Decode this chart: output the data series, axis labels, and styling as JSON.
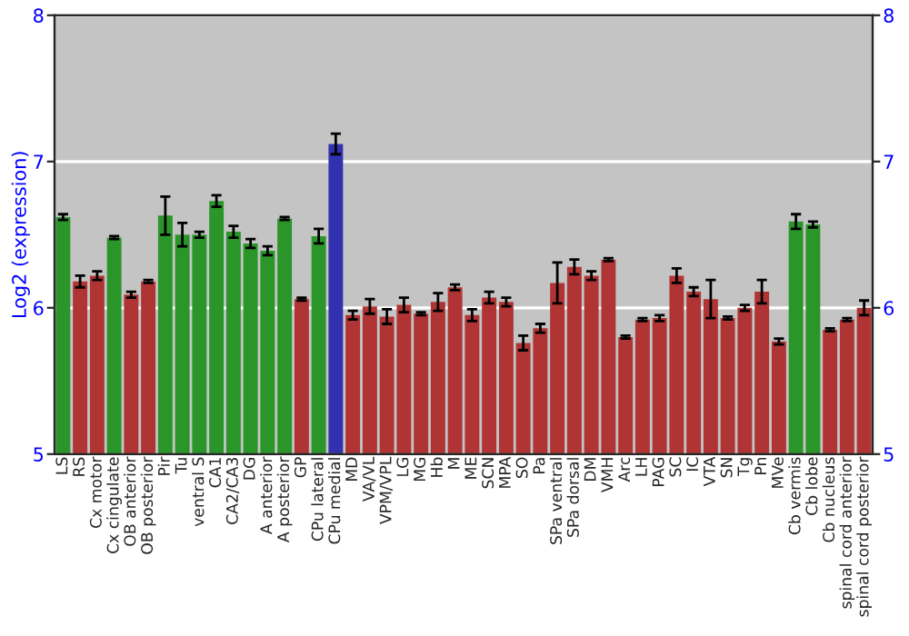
{
  "chart_data": {
    "type": "bar",
    "ylabel": "Log2 (expression)",
    "categories": [
      "LS",
      "RS",
      "Cx motor",
      "Cx cingulate",
      "OB anterior",
      "OB posterior",
      "Pir",
      "Tu",
      "ventral S",
      "CA1",
      "CA2/CA3",
      "DG",
      "A anterior",
      "A posterior",
      "GP",
      "CPu lateral",
      "CPu medial",
      "MD",
      "VA/VL",
      "VPM/VPL",
      "LG",
      "MG",
      "Hb",
      "M",
      "ME",
      "SCN",
      "MPA",
      "SO",
      "Pa",
      "SPa ventral",
      "SPa dorsal",
      "DM",
      "VMH",
      "Arc",
      "LH",
      "PAG",
      "SC",
      "IC",
      "VTA",
      "SN",
      "Tg",
      "Pn",
      "MVe",
      "Cb vermis",
      "Cb lobe",
      "Cb nucleus",
      "spinal cord anterior",
      "spinal cord posterior"
    ],
    "values": [
      6.62,
      6.18,
      6.22,
      6.48,
      6.09,
      6.18,
      6.63,
      6.5,
      6.5,
      6.73,
      6.52,
      6.44,
      6.39,
      6.61,
      6.06,
      6.49,
      7.12,
      5.95,
      6.01,
      5.94,
      6.02,
      5.96,
      6.04,
      6.14,
      5.95,
      6.07,
      6.04,
      5.76,
      5.86,
      6.17,
      6.28,
      6.22,
      6.33,
      5.8,
      5.92,
      5.93,
      6.22,
      6.11,
      6.06,
      5.93,
      6.0,
      6.11,
      5.77,
      6.59,
      6.57,
      5.85,
      5.92,
      6.0
    ],
    "errors": [
      0.02,
      0.04,
      0.03,
      0.01,
      0.02,
      0.01,
      0.13,
      0.08,
      0.02,
      0.04,
      0.04,
      0.03,
      0.03,
      0.01,
      0.01,
      0.05,
      0.07,
      0.03,
      0.05,
      0.05,
      0.05,
      0.01,
      0.06,
      0.02,
      0.04,
      0.04,
      0.03,
      0.05,
      0.03,
      0.14,
      0.05,
      0.03,
      0.01,
      0.01,
      0.01,
      0.02,
      0.05,
      0.03,
      0.13,
      0.01,
      0.02,
      0.08,
      0.02,
      0.05,
      0.02,
      0.01,
      0.01,
      0.05
    ],
    "colors": [
      "#2a962a",
      "#b03434",
      "#b03434",
      "#2a962a",
      "#b03434",
      "#b03434",
      "#2a962a",
      "#2a962a",
      "#2a962a",
      "#2a962a",
      "#2a962a",
      "#2a962a",
      "#2a962a",
      "#2a962a",
      "#b03434",
      "#2a962a",
      "#3232b0",
      "#b03434",
      "#b03434",
      "#b03434",
      "#b03434",
      "#b03434",
      "#b03434",
      "#b03434",
      "#b03434",
      "#b03434",
      "#b03434",
      "#b03434",
      "#b03434",
      "#b03434",
      "#b03434",
      "#b03434",
      "#b03434",
      "#b03434",
      "#b03434",
      "#b03434",
      "#b03434",
      "#b03434",
      "#b03434",
      "#b03434",
      "#b03434",
      "#b03434",
      "#b03434",
      "#2a962a",
      "#2a962a",
      "#b03434",
      "#b03434",
      "#b03434"
    ],
    "ylim": [
      5,
      8
    ],
    "yticks": [
      5,
      6,
      7,
      8
    ],
    "y2lim": [
      5,
      8
    ],
    "y2ticks": [
      5,
      6,
      7,
      8
    ],
    "grid": "y"
  }
}
